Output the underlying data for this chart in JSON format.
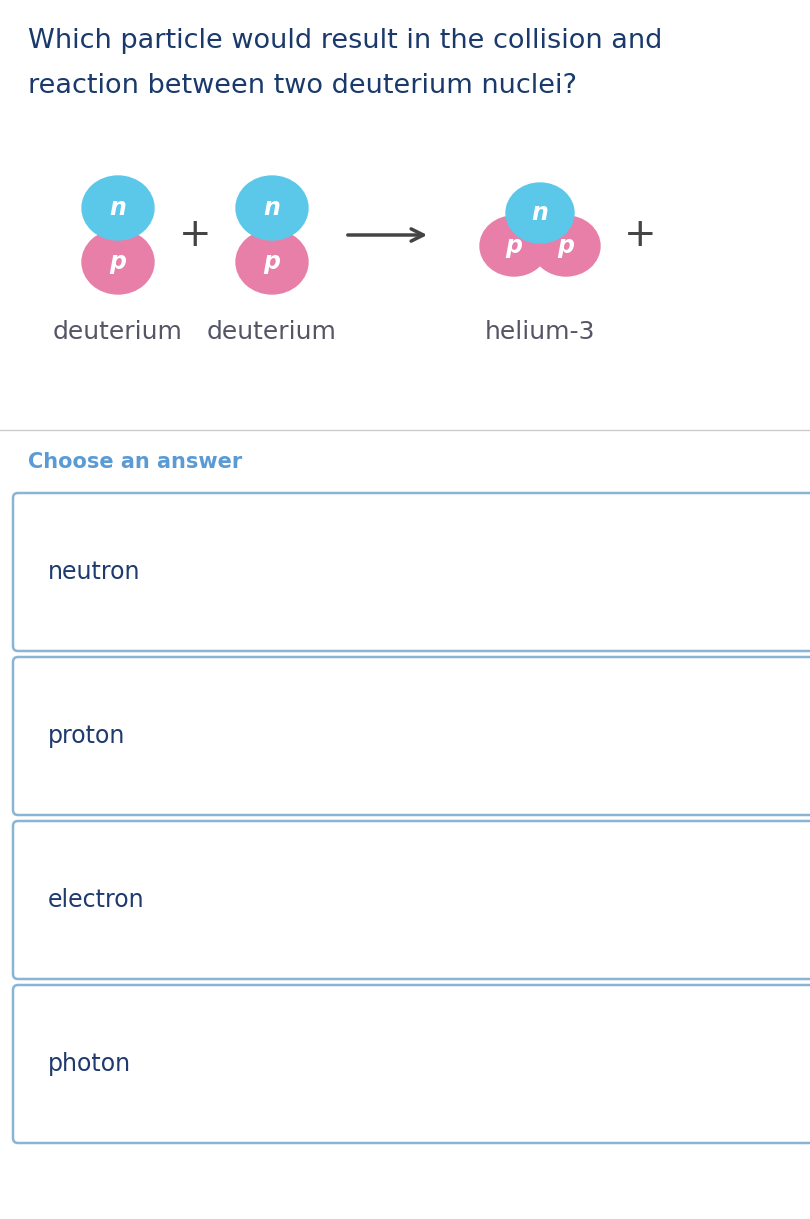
{
  "question_line1": "Which particle would result in the collision and",
  "question_line2": "reaction between two deuterium nuclei?",
  "question_color": "#1a3a6b",
  "question_fontsize": 19.5,
  "neutron_color": "#5bc8ea",
  "proton_color": "#e87fa8",
  "particle_label_color": "#ffffff",
  "particle_fontsize": 17,
  "label_fontsize": 18,
  "label_color": "#555566",
  "choose_answer_text": "Choose an answer",
  "choose_answer_color": "#5b9bd5",
  "choose_answer_fontsize": 15,
  "answer_options": [
    "neutron",
    "proton",
    "electron",
    "photon"
  ],
  "answer_fontsize": 17,
  "answer_text_color": "#1e3a6e",
  "answer_box_border_color": "#89b4d4",
  "answer_box_bg": "#ffffff",
  "bg_color": "#ffffff",
  "divider_color": "#cccccc",
  "arrow_color": "#444444",
  "plus_color": "#444444",
  "plus_fontsize": 28
}
